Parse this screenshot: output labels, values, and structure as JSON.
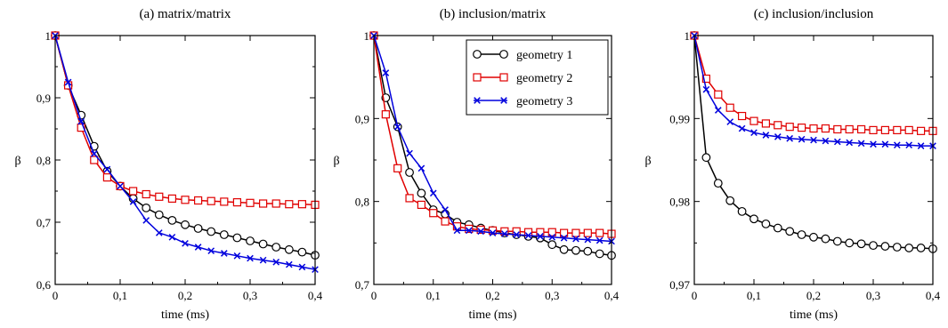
{
  "colors": {
    "geometry1": "#000000",
    "geometry2": "#e00000",
    "geometry3": "#0000dd"
  },
  "chart_data": [
    {
      "type": "line",
      "title": "(a) matrix/matrix",
      "xlabel": "time (ms)",
      "ylabel": "β",
      "xlim": [
        0,
        0.4
      ],
      "ylim": [
        0.6,
        1.0
      ],
      "xticks": [
        0,
        0.1,
        0.2,
        0.3,
        0.4
      ],
      "xtick_labels": [
        "0",
        "0,1",
        "0,2",
        "0,3",
        "0,4"
      ],
      "yticks": [
        0.6,
        0.7,
        0.8,
        0.9,
        1.0
      ],
      "ytick_labels": [
        "0,6",
        "0,7",
        "0,8",
        "0,9",
        "1"
      ],
      "legend": false,
      "series": [
        {
          "name": "geometry 1",
          "marker": "circle",
          "x": [
            0,
            0.02,
            0.04,
            0.06,
            0.08,
            0.1,
            0.12,
            0.14,
            0.16,
            0.18,
            0.2,
            0.22,
            0.24,
            0.26,
            0.28,
            0.3,
            0.32,
            0.34,
            0.36,
            0.38,
            0.4
          ],
          "y": [
            1.0,
            0.92,
            0.872,
            0.822,
            0.782,
            0.758,
            0.738,
            0.723,
            0.712,
            0.703,
            0.696,
            0.69,
            0.685,
            0.68,
            0.675,
            0.67,
            0.665,
            0.66,
            0.656,
            0.652,
            0.647
          ]
        },
        {
          "name": "geometry 2",
          "marker": "square",
          "x": [
            0,
            0.02,
            0.04,
            0.06,
            0.08,
            0.1,
            0.12,
            0.14,
            0.16,
            0.18,
            0.2,
            0.22,
            0.24,
            0.26,
            0.28,
            0.3,
            0.32,
            0.34,
            0.36,
            0.38,
            0.4
          ],
          "y": [
            1.0,
            0.92,
            0.852,
            0.8,
            0.772,
            0.758,
            0.75,
            0.745,
            0.741,
            0.738,
            0.736,
            0.735,
            0.734,
            0.733,
            0.732,
            0.731,
            0.73,
            0.73,
            0.729,
            0.729,
            0.728
          ]
        },
        {
          "name": "geometry 3",
          "marker": "x",
          "x": [
            0,
            0.02,
            0.04,
            0.06,
            0.08,
            0.1,
            0.12,
            0.14,
            0.16,
            0.18,
            0.2,
            0.22,
            0.24,
            0.26,
            0.28,
            0.3,
            0.32,
            0.34,
            0.36,
            0.38,
            0.4
          ],
          "y": [
            1.0,
            0.925,
            0.862,
            0.81,
            0.785,
            0.758,
            0.733,
            0.703,
            0.683,
            0.676,
            0.666,
            0.66,
            0.654,
            0.65,
            0.646,
            0.642,
            0.639,
            0.636,
            0.632,
            0.628,
            0.624
          ]
        }
      ]
    },
    {
      "type": "line",
      "title": "(b) inclusion/matrix",
      "xlabel": "time (ms)",
      "ylabel": "β",
      "xlim": [
        0,
        0.4
      ],
      "ylim": [
        0.7,
        1.0
      ],
      "xticks": [
        0,
        0.1,
        0.2,
        0.3,
        0.4
      ],
      "xtick_labels": [
        "0",
        "0,1",
        "0,2",
        "0,3",
        "0,4"
      ],
      "yticks": [
        0.7,
        0.8,
        0.9,
        1.0
      ],
      "ytick_labels": [
        "0,7",
        "0,8",
        "0,9",
        "1"
      ],
      "legend": true,
      "legend_position": "top-right",
      "series": [
        {
          "name": "geometry 1",
          "marker": "circle",
          "x": [
            0,
            0.02,
            0.04,
            0.06,
            0.08,
            0.1,
            0.12,
            0.14,
            0.16,
            0.18,
            0.2,
            0.22,
            0.24,
            0.26,
            0.28,
            0.3,
            0.32,
            0.34,
            0.36,
            0.38,
            0.4
          ],
          "y": [
            1.0,
            0.925,
            0.89,
            0.835,
            0.81,
            0.79,
            0.785,
            0.775,
            0.772,
            0.768,
            0.765,
            0.762,
            0.76,
            0.758,
            0.756,
            0.748,
            0.742,
            0.741,
            0.74,
            0.737,
            0.735
          ]
        },
        {
          "name": "geometry 2",
          "marker": "square",
          "x": [
            0,
            0.02,
            0.04,
            0.06,
            0.08,
            0.1,
            0.12,
            0.14,
            0.16,
            0.18,
            0.2,
            0.22,
            0.24,
            0.26,
            0.28,
            0.3,
            0.32,
            0.34,
            0.36,
            0.38,
            0.4
          ],
          "y": [
            1.0,
            0.905,
            0.84,
            0.804,
            0.796,
            0.786,
            0.776,
            0.77,
            0.767,
            0.766,
            0.765,
            0.764,
            0.764,
            0.763,
            0.763,
            0.763,
            0.762,
            0.762,
            0.762,
            0.762,
            0.761
          ]
        },
        {
          "name": "geometry 3",
          "marker": "x",
          "x": [
            0,
            0.02,
            0.04,
            0.06,
            0.08,
            0.1,
            0.12,
            0.14,
            0.16,
            0.18,
            0.2,
            0.22,
            0.24,
            0.26,
            0.28,
            0.3,
            0.32,
            0.34,
            0.36,
            0.38,
            0.4
          ],
          "y": [
            1.0,
            0.955,
            0.89,
            0.858,
            0.84,
            0.81,
            0.79,
            0.765,
            0.765,
            0.764,
            0.762,
            0.761,
            0.76,
            0.759,
            0.758,
            0.757,
            0.756,
            0.755,
            0.754,
            0.753,
            0.752
          ]
        }
      ]
    },
    {
      "type": "line",
      "title": "(c) inclusion/inclusion",
      "xlabel": "time (ms)",
      "ylabel": "β",
      "xlim": [
        0,
        0.4
      ],
      "ylim": [
        0.97,
        1.0
      ],
      "xticks": [
        0,
        0.1,
        0.2,
        0.3,
        0.4
      ],
      "xtick_labels": [
        "0",
        "0,1",
        "0,2",
        "0,3",
        "0,4"
      ],
      "yticks": [
        0.97,
        0.98,
        0.99,
        1.0
      ],
      "ytick_labels": [
        "0,97",
        "0,98",
        "0,99",
        "1"
      ],
      "legend": false,
      "series": [
        {
          "name": "geometry 1",
          "marker": "circle",
          "x": [
            0,
            0.02,
            0.04,
            0.06,
            0.08,
            0.1,
            0.12,
            0.14,
            0.16,
            0.18,
            0.2,
            0.22,
            0.24,
            0.26,
            0.28,
            0.3,
            0.32,
            0.34,
            0.36,
            0.38,
            0.4
          ],
          "y": [
            1.0,
            0.9853,
            0.9822,
            0.9801,
            0.9788,
            0.9779,
            0.9773,
            0.9768,
            0.9764,
            0.976,
            0.9757,
            0.9755,
            0.9752,
            0.975,
            0.9749,
            0.9747,
            0.9746,
            0.9745,
            0.9744,
            0.9744,
            0.9743
          ]
        },
        {
          "name": "geometry 2",
          "marker": "square",
          "x": [
            0,
            0.02,
            0.04,
            0.06,
            0.08,
            0.1,
            0.12,
            0.14,
            0.16,
            0.18,
            0.2,
            0.22,
            0.24,
            0.26,
            0.28,
            0.3,
            0.32,
            0.34,
            0.36,
            0.38,
            0.4
          ],
          "y": [
            1.0,
            0.9948,
            0.9929,
            0.9913,
            0.9903,
            0.9897,
            0.9894,
            0.9892,
            0.989,
            0.9889,
            0.9888,
            0.9888,
            0.9887,
            0.9887,
            0.9887,
            0.9886,
            0.9886,
            0.9886,
            0.9886,
            0.9885,
            0.9885
          ]
        },
        {
          "name": "geometry 3",
          "marker": "x",
          "x": [
            0,
            0.02,
            0.04,
            0.06,
            0.08,
            0.1,
            0.12,
            0.14,
            0.16,
            0.18,
            0.2,
            0.22,
            0.24,
            0.26,
            0.28,
            0.3,
            0.32,
            0.34,
            0.36,
            0.38,
            0.4
          ],
          "y": [
            1.0,
            0.9935,
            0.991,
            0.9896,
            0.9888,
            0.9883,
            0.988,
            0.9878,
            0.9876,
            0.9875,
            0.9874,
            0.9873,
            0.9872,
            0.9871,
            0.987,
            0.9869,
            0.9869,
            0.9868,
            0.9868,
            0.9867,
            0.9867
          ]
        }
      ]
    }
  ]
}
